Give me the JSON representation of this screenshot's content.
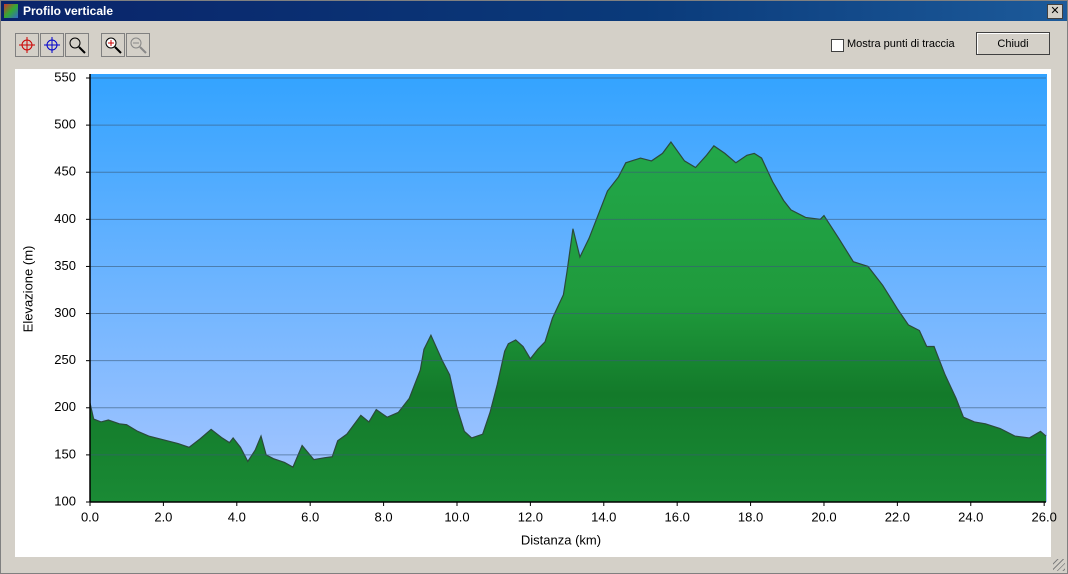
{
  "window": {
    "title": "Profilo verticale",
    "checkbox_label": "Mostra punti di traccia",
    "button": "Chiudi"
  },
  "chart_data": {
    "type": "area",
    "xlabel": "Distanza   (km)",
    "ylabel": "Elevazione (m)",
    "x": [
      0.0,
      0.1,
      0.3,
      0.5,
      0.8,
      1.0,
      1.3,
      1.6,
      2.0,
      2.4,
      2.7,
      3.0,
      3.3,
      3.6,
      3.8,
      3.9,
      4.1,
      4.3,
      4.5,
      4.66,
      4.8,
      5.0,
      5.3,
      5.53,
      5.78,
      6.1,
      6.4,
      6.6,
      6.75,
      7.0,
      7.38,
      7.6,
      7.8,
      8.1,
      8.4,
      8.7,
      9.0,
      9.1,
      9.29,
      9.6,
      9.8,
      10.0,
      10.2,
      10.4,
      10.7,
      10.9,
      11.1,
      11.3,
      11.4,
      11.6,
      11.8,
      12.0,
      12.2,
      12.4,
      12.6,
      12.9,
      13.0,
      13.16,
      13.35,
      13.6,
      13.9,
      14.1,
      14.4,
      14.6,
      15.0,
      15.3,
      15.6,
      15.83,
      16.2,
      16.5,
      16.8,
      17.0,
      17.3,
      17.6,
      17.9,
      18.1,
      18.3,
      18.6,
      18.9,
      19.1,
      19.5,
      19.9,
      20.0,
      20.4,
      20.8,
      21.2,
      21.6,
      22.0,
      22.3,
      22.6,
      22.8,
      23.0,
      23.3,
      23.6,
      23.8,
      24.1,
      24.4,
      24.8,
      25.2,
      25.6,
      25.9,
      26.05
    ],
    "values": [
      205,
      188,
      185,
      187,
      183,
      182,
      175,
      170,
      166,
      162,
      158,
      167,
      177,
      168,
      163,
      168,
      158,
      143,
      155,
      170,
      150,
      146,
      142,
      137,
      160,
      145,
      147,
      148,
      165,
      172,
      192,
      185,
      198,
      190,
      195,
      210,
      240,
      262,
      277,
      250,
      235,
      200,
      175,
      168,
      172,
      195,
      225,
      260,
      268,
      272,
      265,
      252,
      262,
      270,
      295,
      320,
      345,
      390,
      360,
      380,
      410,
      430,
      445,
      460,
      465,
      462,
      470,
      482,
      462,
      455,
      468,
      478,
      470,
      460,
      468,
      470,
      465,
      440,
      420,
      410,
      402,
      400,
      404,
      380,
      355,
      350,
      330,
      305,
      288,
      282,
      265,
      265,
      235,
      210,
      190,
      185,
      183,
      178,
      170,
      168,
      175,
      170
    ],
    "xlim": [
      0,
      26.05
    ],
    "ylim": [
      100,
      550
    ],
    "xticks": [
      {
        "value": 0,
        "label": "0.0"
      },
      {
        "value": 2,
        "label": "2.0"
      },
      {
        "value": 4,
        "label": "4.0"
      },
      {
        "value": 6,
        "label": "6.0"
      },
      {
        "value": 8,
        "label": "8.0"
      },
      {
        "value": 10,
        "label": "10.0"
      },
      {
        "value": 12,
        "label": "12.0"
      },
      {
        "value": 14,
        "label": "14.0"
      },
      {
        "value": 16,
        "label": "16.0"
      },
      {
        "value": 18,
        "label": "18.0"
      },
      {
        "value": 20,
        "label": "20.0"
      },
      {
        "value": 22,
        "label": "22.0"
      },
      {
        "value": 24,
        "label": "24.0"
      },
      {
        "value": 26,
        "label": "26.0"
      }
    ],
    "yticks": [
      100,
      150,
      200,
      250,
      300,
      350,
      400,
      450,
      500,
      550
    ],
    "grid": true,
    "color": "#1f9a3c"
  }
}
